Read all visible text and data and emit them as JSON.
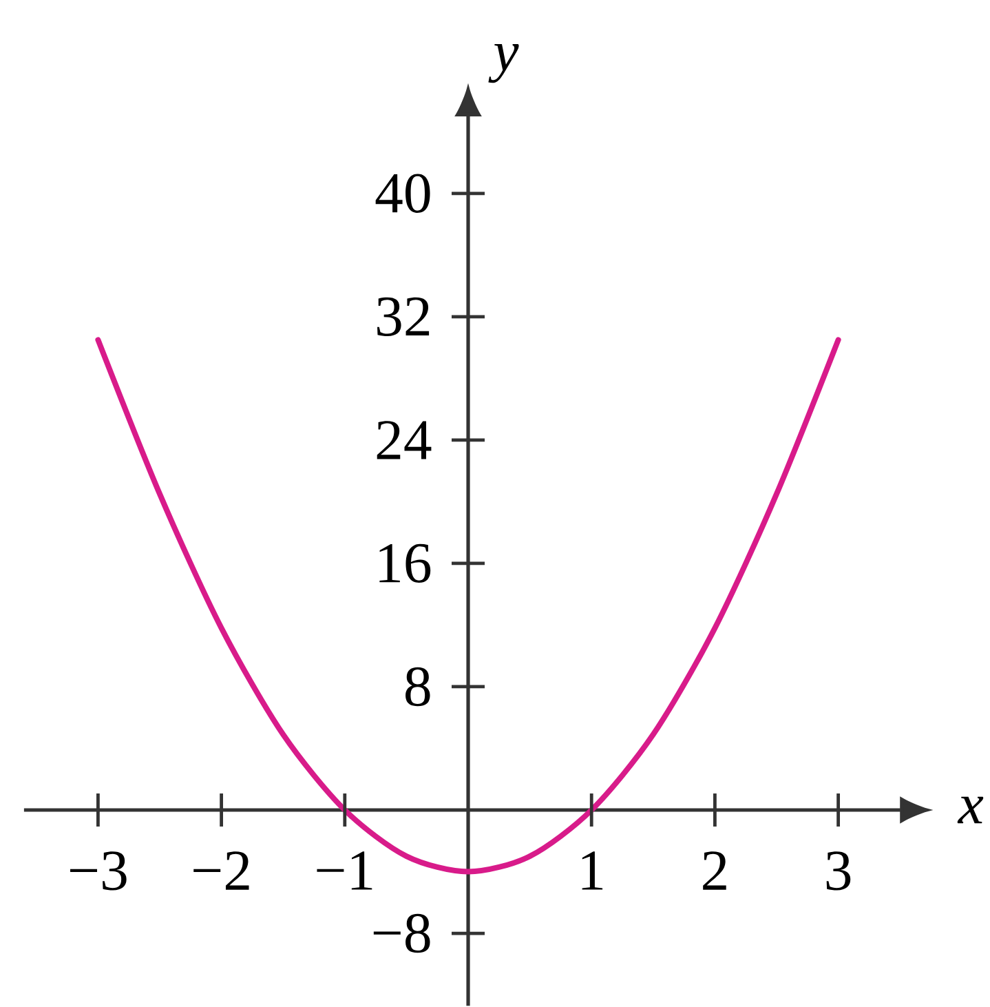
{
  "chart_data": {
    "type": "line",
    "xlabel": "x",
    "ylabel": "y",
    "x": [
      -3,
      -2.5,
      -2,
      -1.5,
      -1,
      -0.5,
      0,
      0.5,
      1,
      1.5,
      2,
      2.5,
      3
    ],
    "series": [
      {
        "color": "#d81b8a",
        "values": [
          30.5,
          20.5,
          11.8,
          4.9,
          0,
          -3,
          -4,
          -3,
          0,
          4.9,
          11.8,
          20.5,
          30.5
        ]
      }
    ],
    "xlim": [
      -3.6,
      3.5
    ],
    "ylim": [
      -12.7,
      45
    ],
    "xticks": [
      {
        "value": -3,
        "label": "−3"
      },
      {
        "value": -2,
        "label": "−2"
      },
      {
        "value": -1,
        "label": "−1"
      },
      1,
      2,
      3
    ],
    "yticks": [
      {
        "value": -8,
        "label": "−8"
      },
      8,
      16,
      24,
      32,
      40
    ],
    "marker": "none",
    "line_style": "solid"
  }
}
